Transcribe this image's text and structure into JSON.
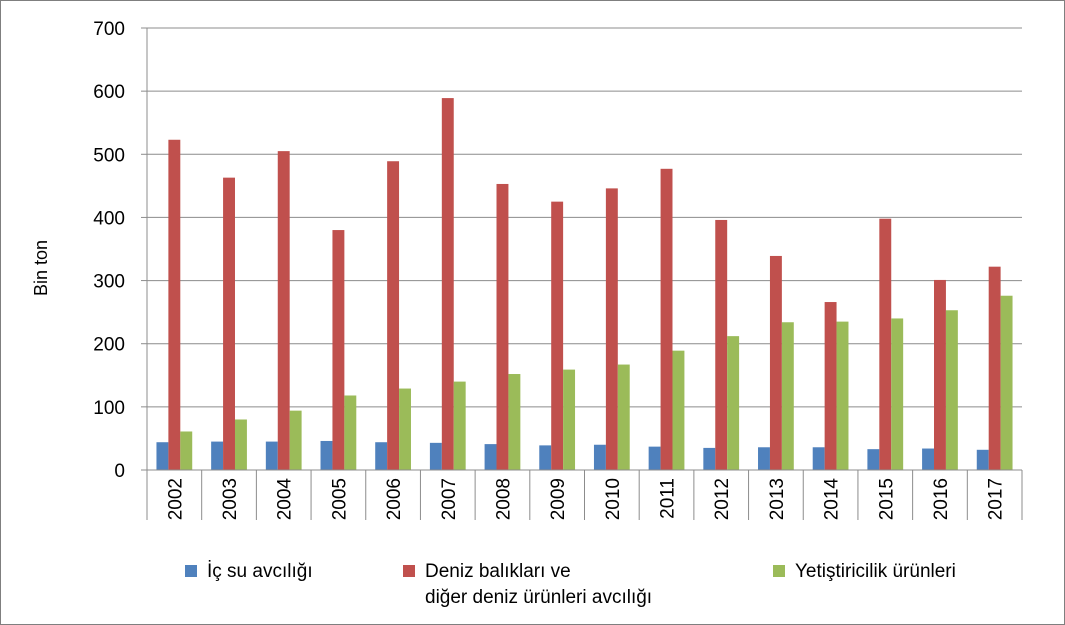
{
  "chart_data": {
    "type": "bar",
    "ylabel": "Bin ton",
    "ylim": [
      0,
      700
    ],
    "yticks": [
      0,
      100,
      200,
      300,
      400,
      500,
      600,
      700
    ],
    "grid": true,
    "legend_position": "bottom",
    "categories": [
      "2002",
      "2003",
      "2004",
      "2005",
      "2006",
      "2007",
      "2008",
      "2009",
      "2010",
      "2011",
      "2012",
      "2013",
      "2014",
      "2015",
      "2016",
      "2017"
    ],
    "series": [
      {
        "name": "İç su avcılığı",
        "color": "#4f81bd",
        "values": [
          44,
          45,
          45,
          46,
          44,
          43,
          41,
          39,
          40,
          37,
          35,
          36,
          36,
          33,
          34,
          32
        ]
      },
      {
        "name": "Deniz balıkları ve\ndiğer deniz ürünleri avcılığı",
        "color": "#c0504d",
        "values": [
          523,
          463,
          505,
          380,
          489,
          589,
          453,
          425,
          446,
          477,
          396,
          339,
          266,
          398,
          301,
          322
        ]
      },
      {
        "name": "Yetiştiricilik ürünleri",
        "color": "#9bbb59",
        "values": [
          61,
          80,
          94,
          118,
          129,
          140,
          152,
          159,
          167,
          189,
          212,
          234,
          235,
          240,
          253,
          276
        ]
      }
    ]
  }
}
